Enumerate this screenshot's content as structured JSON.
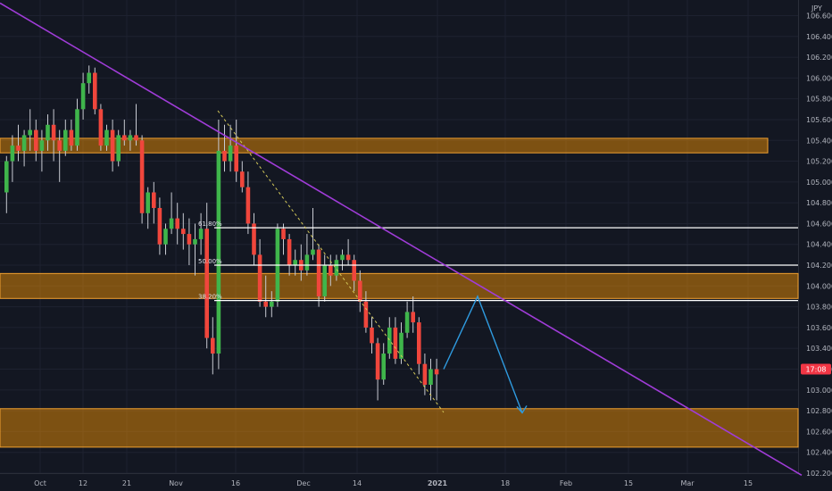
{
  "chart_data": {
    "type": "candlestick",
    "currency": "JPY",
    "ylim": [
      102.2,
      106.75
    ],
    "price_ticks": [
      "106.600",
      "106.400",
      "106.200",
      "106.000",
      "105.800",
      "105.600",
      "105.400",
      "105.200",
      "105.000",
      "104.800",
      "104.600",
      "104.400",
      "104.200",
      "104.000",
      "103.800",
      "103.600",
      "103.400",
      "103.200",
      "103.000",
      "102.800",
      "102.600",
      "102.400",
      "102.200"
    ],
    "time_ticks": [
      "Oct",
      "12",
      "21",
      "Nov",
      "16",
      "Dec",
      "14",
      "2021",
      "18",
      "Feb",
      "15",
      "Mar",
      "15"
    ],
    "current_price": 103.2,
    "price_label": "17:08",
    "fib_levels": [
      {
        "label": "61.80%",
        "price": 104.56
      },
      {
        "label": "50.00%",
        "price": 104.2
      },
      {
        "label": "38.20%",
        "price": 103.86
      }
    ],
    "zones": [
      {
        "top": 105.42,
        "bottom": 105.28
      },
      {
        "top": 104.12,
        "bottom": 103.88
      },
      {
        "top": 102.82,
        "bottom": 102.45
      }
    ],
    "trendline": {
      "from": 106.72,
      "to": 102.18
    },
    "projection": [
      103.2,
      103.9,
      102.78
    ],
    "candles": [
      [
        104.9,
        105.25,
        104.7,
        105.2
      ],
      [
        105.2,
        105.45,
        105.0,
        105.35
      ],
      [
        105.35,
        105.55,
        105.2,
        105.3
      ],
      [
        105.3,
        105.5,
        105.15,
        105.45
      ],
      [
        105.45,
        105.7,
        105.3,
        105.5
      ],
      [
        105.5,
        105.6,
        105.2,
        105.3
      ],
      [
        105.3,
        105.5,
        105.1,
        105.4
      ],
      [
        105.4,
        105.65,
        105.3,
        105.55
      ],
      [
        105.55,
        105.7,
        105.2,
        105.4
      ],
      [
        105.4,
        105.5,
        105.0,
        105.3
      ],
      [
        105.3,
        105.6,
        105.25,
        105.5
      ],
      [
        105.5,
        105.6,
        105.3,
        105.35
      ],
      [
        105.35,
        105.8,
        105.3,
        105.7
      ],
      [
        105.7,
        106.05,
        105.6,
        105.95
      ],
      [
        105.95,
        106.12,
        105.85,
        106.05
      ],
      [
        106.05,
        106.1,
        105.65,
        105.7
      ],
      [
        105.7,
        105.75,
        105.3,
        105.35
      ],
      [
        105.35,
        105.55,
        105.3,
        105.5
      ],
      [
        105.5,
        105.6,
        105.1,
        105.2
      ],
      [
        105.2,
        105.5,
        105.15,
        105.45
      ],
      [
        105.45,
        105.6,
        105.35,
        105.4
      ],
      [
        105.4,
        105.5,
        105.3,
        105.45
      ],
      [
        105.45,
        105.75,
        105.35,
        105.4
      ],
      [
        105.4,
        105.45,
        104.6,
        104.7
      ],
      [
        104.7,
        104.95,
        104.55,
        104.9
      ],
      [
        104.9,
        105.0,
        104.6,
        104.75
      ],
      [
        104.75,
        104.85,
        104.3,
        104.4
      ],
      [
        104.4,
        104.6,
        104.3,
        104.55
      ],
      [
        104.55,
        104.9,
        104.5,
        104.65
      ],
      [
        104.65,
        104.8,
        104.4,
        104.55
      ],
      [
        104.55,
        104.7,
        104.35,
        104.5
      ],
      [
        104.5,
        104.65,
        104.2,
        104.4
      ],
      [
        104.4,
        104.6,
        104.1,
        104.45
      ],
      [
        104.45,
        104.7,
        104.3,
        104.55
      ],
      [
        104.55,
        104.8,
        103.4,
        103.5
      ],
      [
        103.5,
        103.7,
        103.15,
        103.35
      ],
      [
        103.35,
        105.6,
        103.2,
        105.3
      ],
      [
        105.3,
        105.55,
        105.1,
        105.2
      ],
      [
        105.2,
        105.55,
        105.1,
        105.35
      ],
      [
        105.35,
        105.6,
        105.0,
        105.1
      ],
      [
        105.1,
        105.2,
        104.9,
        104.95
      ],
      [
        104.95,
        105.1,
        104.5,
        104.6
      ],
      [
        104.6,
        104.7,
        104.2,
        104.3
      ],
      [
        104.3,
        104.45,
        103.8,
        103.85
      ],
      [
        103.85,
        104.1,
        103.7,
        103.8
      ],
      [
        103.8,
        103.95,
        103.7,
        103.85
      ],
      [
        103.85,
        104.6,
        103.8,
        104.55
      ],
      [
        104.55,
        104.6,
        104.3,
        104.45
      ],
      [
        104.45,
        104.5,
        104.1,
        104.2
      ],
      [
        104.2,
        104.35,
        104.1,
        104.25
      ],
      [
        104.25,
        104.4,
        104.05,
        104.15
      ],
      [
        104.15,
        104.5,
        104.1,
        104.3
      ],
      [
        104.3,
        104.75,
        104.25,
        104.35
      ],
      [
        104.35,
        104.4,
        103.8,
        103.9
      ],
      [
        103.9,
        104.3,
        103.85,
        104.2
      ],
      [
        104.2,
        104.3,
        104.0,
        104.1
      ],
      [
        104.1,
        104.3,
        104.05,
        104.25
      ],
      [
        104.25,
        104.35,
        104.15,
        104.3
      ],
      [
        104.3,
        104.45,
        104.2,
        104.25
      ],
      [
        104.25,
        104.3,
        103.95,
        104.05
      ],
      [
        104.05,
        104.15,
        103.75,
        103.85
      ],
      [
        103.85,
        103.95,
        103.55,
        103.6
      ],
      [
        103.6,
        103.7,
        103.35,
        103.45
      ],
      [
        103.45,
        103.5,
        102.9,
        103.1
      ],
      [
        103.1,
        103.45,
        103.05,
        103.35
      ],
      [
        103.35,
        103.7,
        103.3,
        103.6
      ],
      [
        103.6,
        103.7,
        103.25,
        103.3
      ],
      [
        103.3,
        103.65,
        103.25,
        103.55
      ],
      [
        103.55,
        103.85,
        103.5,
        103.75
      ],
      [
        103.75,
        103.9,
        103.55,
        103.65
      ],
      [
        103.65,
        103.7,
        103.15,
        103.25
      ],
      [
        103.25,
        103.35,
        102.95,
        103.05
      ],
      [
        103.05,
        103.3,
        102.9,
        103.2
      ],
      [
        103.2,
        103.3,
        102.9,
        103.15
      ]
    ]
  }
}
